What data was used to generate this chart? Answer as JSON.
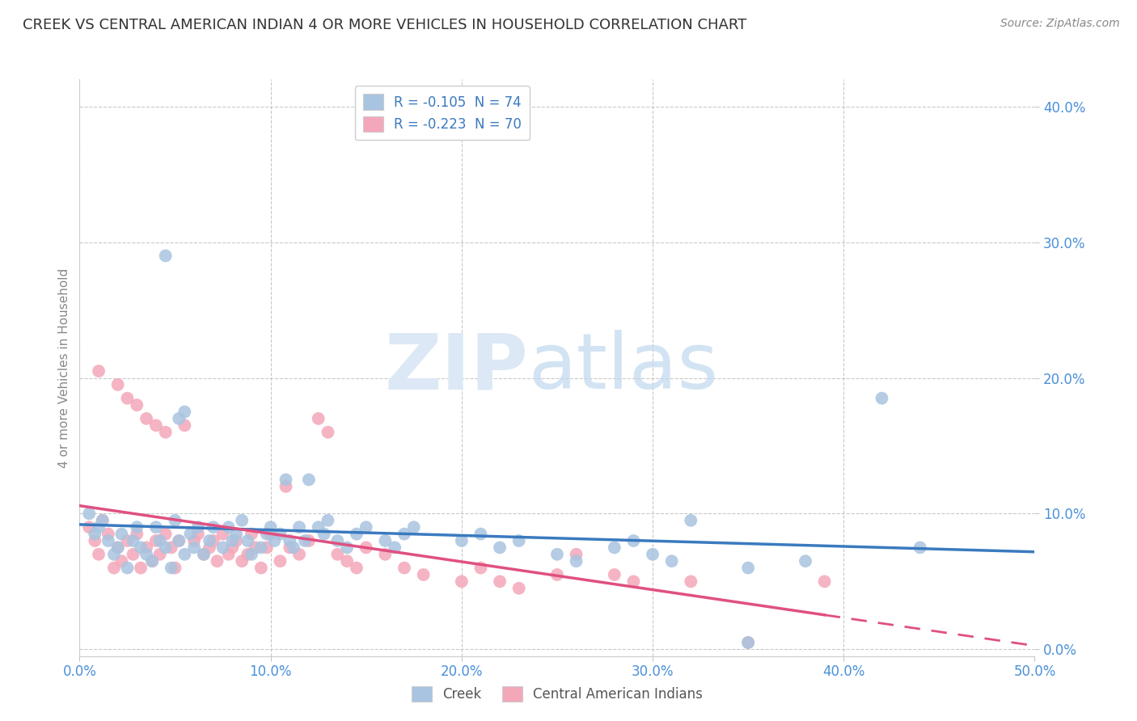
{
  "title": "CREEK VS CENTRAL AMERICAN INDIAN 4 OR MORE VEHICLES IN HOUSEHOLD CORRELATION CHART",
  "source": "Source: ZipAtlas.com",
  "ylabel": "4 or more Vehicles in Household",
  "xlim": [
    0.0,
    0.5
  ],
  "ylim": [
    -0.005,
    0.42
  ],
  "yticks": [
    0.0,
    0.1,
    0.2,
    0.3,
    0.4
  ],
  "xticks": [
    0.0,
    0.1,
    0.2,
    0.3,
    0.4,
    0.5
  ],
  "creek_color": "#a8c4e0",
  "creek_line_color": "#3a7abf",
  "ca_indian_color": "#f4a7b9",
  "ca_indian_line_color": "#e05080",
  "legend_creek_label": "R = -0.105  N = 74",
  "legend_ca_label": "R = -0.223  N = 70",
  "legend_bottom_creek": "Creek",
  "legend_bottom_ca": "Central American Indians",
  "creek_scatter": [
    [
      0.005,
      0.1
    ],
    [
      0.008,
      0.085
    ],
    [
      0.01,
      0.09
    ],
    [
      0.012,
      0.095
    ],
    [
      0.015,
      0.08
    ],
    [
      0.018,
      0.07
    ],
    [
      0.02,
      0.075
    ],
    [
      0.022,
      0.085
    ],
    [
      0.025,
      0.06
    ],
    [
      0.028,
      0.08
    ],
    [
      0.03,
      0.09
    ],
    [
      0.032,
      0.075
    ],
    [
      0.035,
      0.07
    ],
    [
      0.038,
      0.065
    ],
    [
      0.04,
      0.09
    ],
    [
      0.042,
      0.08
    ],
    [
      0.045,
      0.075
    ],
    [
      0.048,
      0.06
    ],
    [
      0.05,
      0.095
    ],
    [
      0.052,
      0.08
    ],
    [
      0.055,
      0.07
    ],
    [
      0.058,
      0.085
    ],
    [
      0.06,
      0.075
    ],
    [
      0.062,
      0.09
    ],
    [
      0.065,
      0.07
    ],
    [
      0.068,
      0.08
    ],
    [
      0.07,
      0.09
    ],
    [
      0.045,
      0.29
    ],
    [
      0.075,
      0.075
    ],
    [
      0.078,
      0.09
    ],
    [
      0.08,
      0.08
    ],
    [
      0.082,
      0.085
    ],
    [
      0.085,
      0.095
    ],
    [
      0.088,
      0.08
    ],
    [
      0.09,
      0.07
    ],
    [
      0.052,
      0.17
    ],
    [
      0.095,
      0.075
    ],
    [
      0.098,
      0.085
    ],
    [
      0.1,
      0.09
    ],
    [
      0.102,
      0.08
    ],
    [
      0.105,
      0.085
    ],
    [
      0.108,
      0.125
    ],
    [
      0.11,
      0.08
    ],
    [
      0.112,
      0.075
    ],
    [
      0.115,
      0.09
    ],
    [
      0.118,
      0.08
    ],
    [
      0.12,
      0.125
    ],
    [
      0.055,
      0.175
    ],
    [
      0.125,
      0.09
    ],
    [
      0.128,
      0.085
    ],
    [
      0.13,
      0.095
    ],
    [
      0.135,
      0.08
    ],
    [
      0.14,
      0.075
    ],
    [
      0.145,
      0.085
    ],
    [
      0.15,
      0.09
    ],
    [
      0.16,
      0.08
    ],
    [
      0.165,
      0.075
    ],
    [
      0.17,
      0.085
    ],
    [
      0.175,
      0.09
    ],
    [
      0.2,
      0.08
    ],
    [
      0.21,
      0.085
    ],
    [
      0.22,
      0.075
    ],
    [
      0.23,
      0.08
    ],
    [
      0.25,
      0.07
    ],
    [
      0.26,
      0.065
    ],
    [
      0.28,
      0.075
    ],
    [
      0.29,
      0.08
    ],
    [
      0.3,
      0.07
    ],
    [
      0.31,
      0.065
    ],
    [
      0.35,
      0.06
    ],
    [
      0.38,
      0.065
    ],
    [
      0.44,
      0.075
    ],
    [
      0.42,
      0.185
    ],
    [
      0.32,
      0.095
    ],
    [
      0.35,
      0.005
    ]
  ],
  "ca_scatter": [
    [
      0.005,
      0.09
    ],
    [
      0.008,
      0.08
    ],
    [
      0.01,
      0.07
    ],
    [
      0.012,
      0.095
    ],
    [
      0.015,
      0.085
    ],
    [
      0.018,
      0.06
    ],
    [
      0.02,
      0.075
    ],
    [
      0.022,
      0.065
    ],
    [
      0.025,
      0.08
    ],
    [
      0.028,
      0.07
    ],
    [
      0.03,
      0.085
    ],
    [
      0.032,
      0.06
    ],
    [
      0.035,
      0.075
    ],
    [
      0.038,
      0.065
    ],
    [
      0.04,
      0.08
    ],
    [
      0.042,
      0.07
    ],
    [
      0.045,
      0.085
    ],
    [
      0.048,
      0.075
    ],
    [
      0.05,
      0.06
    ],
    [
      0.052,
      0.08
    ],
    [
      0.01,
      0.205
    ],
    [
      0.02,
      0.195
    ],
    [
      0.025,
      0.185
    ],
    [
      0.03,
      0.18
    ],
    [
      0.035,
      0.17
    ],
    [
      0.04,
      0.165
    ],
    [
      0.055,
      0.165
    ],
    [
      0.045,
      0.16
    ],
    [
      0.06,
      0.08
    ],
    [
      0.062,
      0.085
    ],
    [
      0.065,
      0.07
    ],
    [
      0.068,
      0.075
    ],
    [
      0.07,
      0.08
    ],
    [
      0.072,
      0.065
    ],
    [
      0.075,
      0.085
    ],
    [
      0.078,
      0.07
    ],
    [
      0.08,
      0.075
    ],
    [
      0.082,
      0.08
    ],
    [
      0.085,
      0.065
    ],
    [
      0.088,
      0.07
    ],
    [
      0.09,
      0.085
    ],
    [
      0.092,
      0.075
    ],
    [
      0.095,
      0.06
    ],
    [
      0.098,
      0.075
    ],
    [
      0.1,
      0.085
    ],
    [
      0.105,
      0.065
    ],
    [
      0.108,
      0.12
    ],
    [
      0.11,
      0.075
    ],
    [
      0.115,
      0.07
    ],
    [
      0.12,
      0.08
    ],
    [
      0.125,
      0.17
    ],
    [
      0.13,
      0.16
    ],
    [
      0.135,
      0.07
    ],
    [
      0.14,
      0.065
    ],
    [
      0.145,
      0.06
    ],
    [
      0.15,
      0.075
    ],
    [
      0.16,
      0.07
    ],
    [
      0.17,
      0.06
    ],
    [
      0.18,
      0.055
    ],
    [
      0.2,
      0.05
    ],
    [
      0.21,
      0.06
    ],
    [
      0.22,
      0.05
    ],
    [
      0.23,
      0.045
    ],
    [
      0.25,
      0.055
    ],
    [
      0.26,
      0.07
    ],
    [
      0.28,
      0.055
    ],
    [
      0.29,
      0.05
    ],
    [
      0.32,
      0.05
    ],
    [
      0.35,
      0.005
    ],
    [
      0.39,
      0.05
    ]
  ],
  "background_color": "#ffffff",
  "grid_color": "#bbbbbb",
  "tick_label_color": "#4a90d9",
  "title_color": "#333333",
  "axis_label_color": "#888888"
}
